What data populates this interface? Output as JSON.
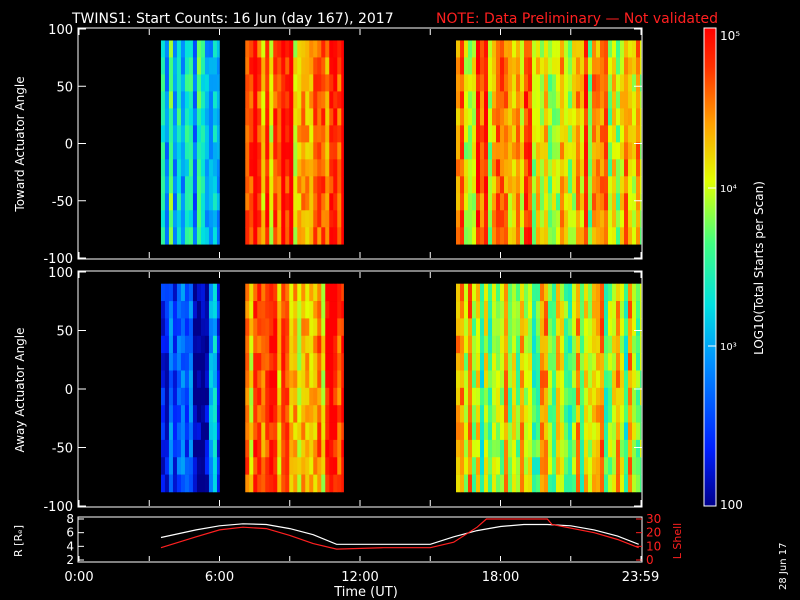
{
  "title": {
    "main": "TWINS1: Start Counts: 16 Jun (day 167), 2017",
    "note": "NOTE: Data Preliminary — Not validated",
    "main_color": "#ffffff",
    "note_color": "#ff2020"
  },
  "panels": {
    "top": {
      "ylabel": "Toward Actuator Angle"
    },
    "bottom": {
      "ylabel": "Away Actuator Angle"
    },
    "orbit": {
      "ylabel_left": "R [Rₑ]",
      "ylabel_right": "L Shell"
    }
  },
  "colorbar": {
    "label": "LOG10(Total Starts per Scan)",
    "ticks": [
      "10⁵",
      "10⁴",
      "10³",
      "100"
    ]
  },
  "xaxis": {
    "label": "Time (UT)",
    "ticks": [
      "0:00",
      "6:00",
      "12:00",
      "18:00",
      "23:59"
    ]
  },
  "date_stamp": "28 Jun 17",
  "chart_data": [
    {
      "type": "heatmap",
      "panel": "top",
      "title": "TWINS1: Start Counts: 16 Jun (day 167), 2017",
      "ylabel": "Toward Actuator Angle",
      "xlabel": "Time (UT)",
      "ylim": [
        -100,
        100
      ],
      "yticks": [
        -100,
        -50,
        0,
        50,
        100
      ],
      "xlim_hours": [
        0,
        24
      ],
      "colorscale_log10_range": [
        2,
        5
      ],
      "data_bands": [
        {
          "start_hour": 3.5,
          "end_hour": 6.0,
          "level": 3.2
        },
        {
          "start_hour": 7.1,
          "end_hour": 11.3,
          "level": 4.6
        },
        {
          "start_hour": 16.1,
          "end_hour": 24.0,
          "level": 4.3
        }
      ],
      "angle_range": [
        -88,
        90
      ]
    },
    {
      "type": "heatmap",
      "panel": "bottom",
      "ylabel": "Away Actuator Angle",
      "xlabel": "Time (UT)",
      "ylim": [
        -100,
        100
      ],
      "yticks": [
        -100,
        -50,
        0,
        50,
        100
      ],
      "xlim_hours": [
        0,
        24
      ],
      "colorscale_log10_range": [
        2,
        5
      ],
      "data_bands": [
        {
          "start_hour": 3.5,
          "end_hour": 6.0,
          "level": 2.6
        },
        {
          "start_hour": 7.1,
          "end_hour": 11.3,
          "level": 4.5
        },
        {
          "start_hour": 16.1,
          "end_hour": 24.0,
          "level": 4.0
        }
      ],
      "angle_range": [
        -88,
        90
      ]
    },
    {
      "type": "line",
      "panel": "orbit",
      "xlabel": "Time (UT)",
      "ylim_left": [
        2,
        8
      ],
      "yticks_left": [
        2,
        4,
        6,
        8
      ],
      "ylim_right": [
        0,
        30
      ],
      "yticks_right": [
        0,
        10,
        20,
        30
      ],
      "series": [
        {
          "name": "R [Re]",
          "color": "#ffffff",
          "x_hours": [
            3.5,
            5,
            6,
            7,
            8,
            9,
            10,
            11,
            13,
            15,
            16,
            17,
            18,
            19,
            20,
            21,
            22,
            23,
            23.9
          ],
          "values": [
            5.3,
            6.4,
            7.0,
            7.3,
            7.2,
            6.6,
            5.7,
            4.3,
            4.3,
            4.3,
            5.4,
            6.3,
            6.9,
            7.2,
            7.2,
            7.0,
            6.4,
            5.5,
            4.3
          ]
        },
        {
          "name": "L Shell",
          "color": "#ff2020",
          "x_hours": [
            3.5,
            5,
            6,
            7,
            8,
            9,
            10,
            11,
            13,
            15,
            16,
            17,
            17.4,
            20.0,
            20.2,
            22,
            23,
            23.9
          ],
          "values": [
            9,
            17,
            22,
            24,
            23,
            18,
            12,
            8,
            9,
            9,
            13,
            24,
            30,
            30,
            26,
            20,
            15,
            9
          ]
        }
      ]
    }
  ]
}
